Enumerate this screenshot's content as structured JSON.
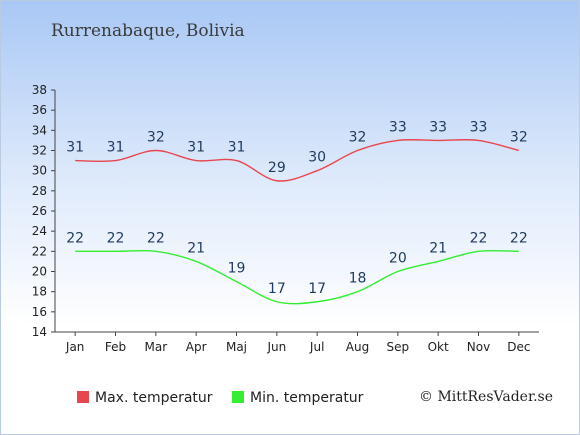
{
  "title": "Rurrenabaque, Bolivia",
  "credit": "© MittResVader.se",
  "chart_data": {
    "type": "line",
    "categories": [
      "Jan",
      "Feb",
      "Mar",
      "Apr",
      "Maj",
      "Jun",
      "Jul",
      "Aug",
      "Sep",
      "Okt",
      "Nov",
      "Dec"
    ],
    "series": [
      {
        "name": "Max. temperatur",
        "color": "#e8464d",
        "values": [
          31,
          31,
          32,
          31,
          31,
          29,
          30,
          32,
          33,
          33,
          33,
          32
        ]
      },
      {
        "name": "Min. temperatur",
        "color": "#33ee33",
        "values": [
          22,
          22,
          22,
          21,
          19,
          17,
          17,
          18,
          20,
          21,
          22,
          22
        ]
      }
    ],
    "ylim": [
      14,
      38
    ],
    "yticks": [
      14,
      16,
      18,
      20,
      22,
      24,
      26,
      28,
      30,
      32,
      34,
      36,
      38
    ],
    "grid": false,
    "legend": "bottom"
  }
}
